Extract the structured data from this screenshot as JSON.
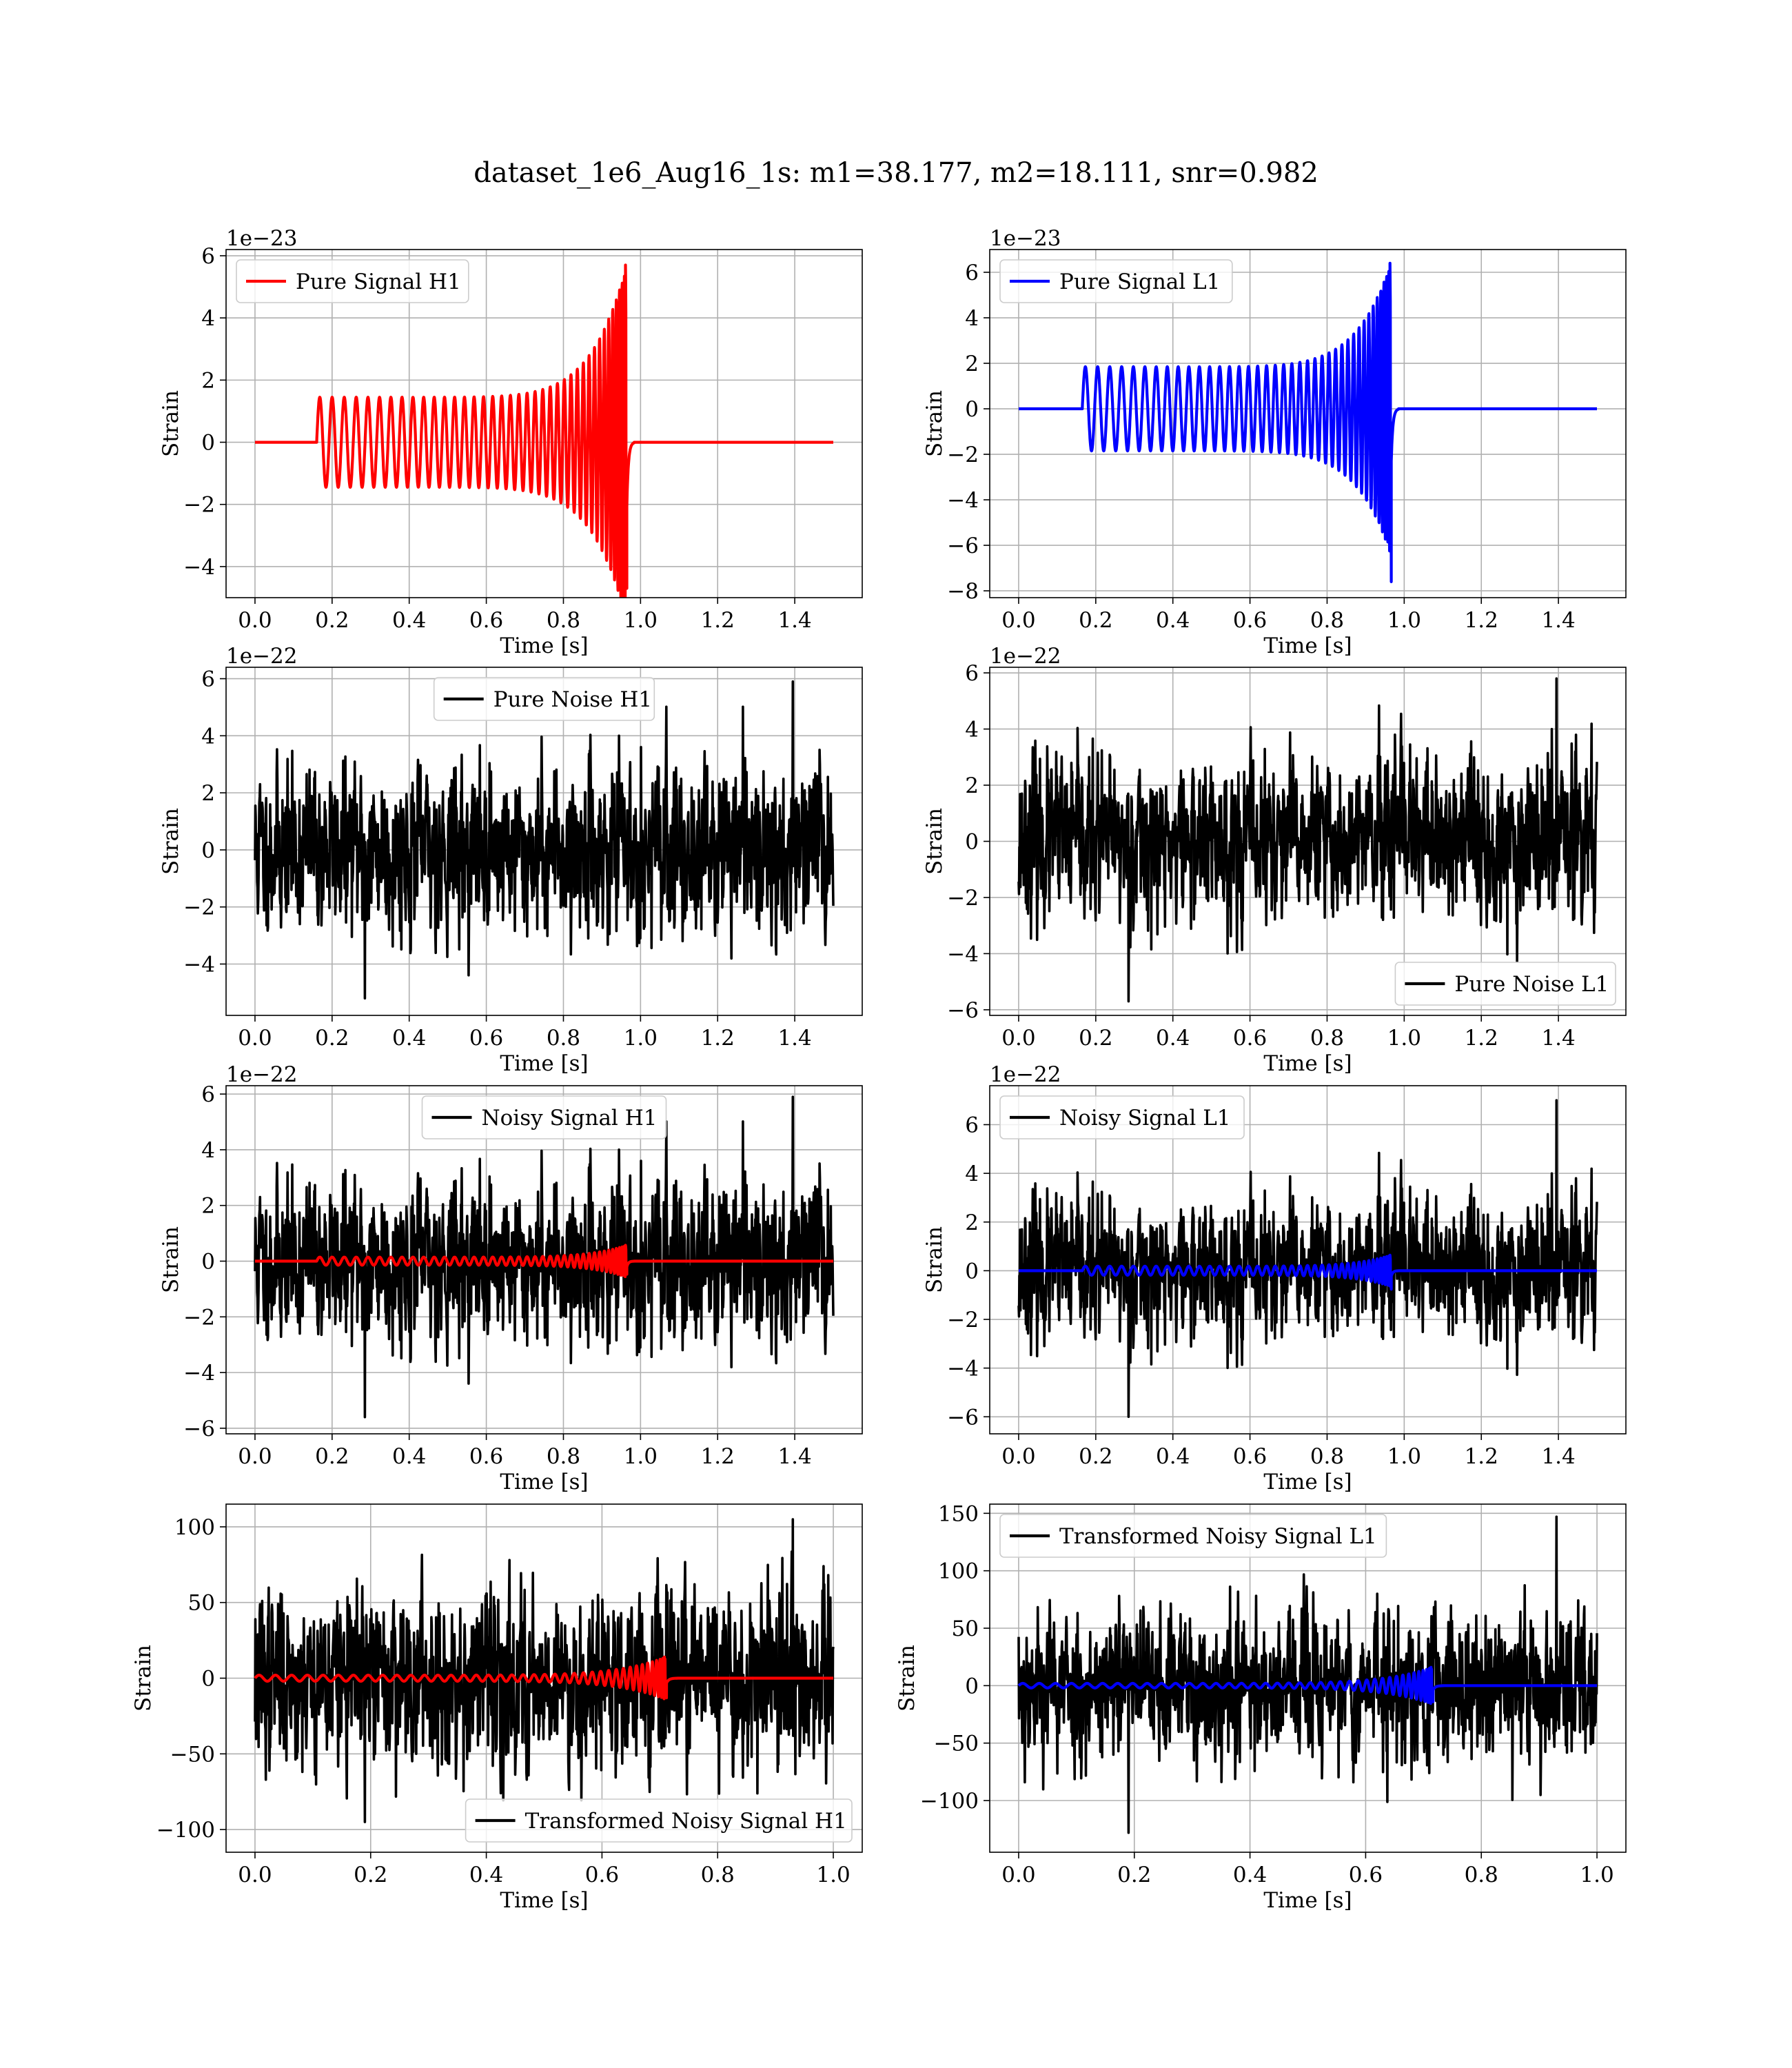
{
  "figure_title": "dataset_1e6_Aug16_1s: m1=38.177, m2=18.111, snr=0.982",
  "colors": {
    "h1_signal": "#ff0000",
    "l1_signal": "#0000ff",
    "noise": "#000000",
    "grid": "#b0b0b0"
  },
  "chart_data": [
    {
      "type": "line",
      "xlabel": "Time [s]",
      "ylabel": "Strain",
      "offset_text": "1e−23",
      "xlim": [
        -0.075,
        1.575
      ],
      "ylim": [
        -5.0,
        6.2
      ],
      "xticks": [
        0.0,
        0.2,
        0.4,
        0.6,
        0.8,
        1.0,
        1.2,
        1.4
      ],
      "xtick_labels": [
        "0.0",
        "0.2",
        "0.4",
        "0.6",
        "0.8",
        "1.0",
        "1.2",
        "1.4"
      ],
      "yticks": [
        -4,
        -2,
        0,
        2,
        4,
        6
      ],
      "ytick_labels": [
        "−4",
        "−2",
        "0",
        "2",
        "4",
        "6"
      ],
      "legend_position": "upper-left",
      "series": [
        {
          "name": "Pure Signal H1",
          "color": "#ff0000",
          "kind": "chirp",
          "t_start": 0.16,
          "t_merge": 0.963,
          "t_end": 1.5,
          "amp_start": 1.45,
          "amp_peak": 5.7,
          "amp_min_peak": -4.7,
          "cycles": 40
        }
      ]
    },
    {
      "type": "line",
      "xlabel": "Time [s]",
      "ylabel": "Strain",
      "offset_text": "1e−23",
      "xlim": [
        -0.075,
        1.575
      ],
      "ylim": [
        -8.3,
        7.0
      ],
      "xticks": [
        0.0,
        0.2,
        0.4,
        0.6,
        0.8,
        1.0,
        1.2,
        1.4
      ],
      "xtick_labels": [
        "0.0",
        "0.2",
        "0.4",
        "0.6",
        "0.8",
        "1.0",
        "1.2",
        "1.4"
      ],
      "yticks": [
        -8,
        -6,
        -4,
        -2,
        0,
        2,
        4,
        6
      ],
      "ytick_labels": [
        "−8",
        "−6",
        "−4",
        "−2",
        "0",
        "2",
        "4",
        "6"
      ],
      "legend_position": "upper-left",
      "series": [
        {
          "name": "Pure Signal L1",
          "color": "#0000ff",
          "kind": "chirp",
          "t_start": 0.165,
          "t_merge": 0.965,
          "t_end": 1.5,
          "amp_start": 1.85,
          "amp_peak": 6.4,
          "amp_min_peak": -7.6,
          "cycles": 40
        }
      ]
    },
    {
      "type": "line",
      "xlabel": "Time [s]",
      "ylabel": "Strain",
      "offset_text": "1e−22",
      "xlim": [
        -0.075,
        1.575
      ],
      "ylim": [
        -5.8,
        6.4
      ],
      "xticks": [
        0.0,
        0.2,
        0.4,
        0.6,
        0.8,
        1.0,
        1.2,
        1.4
      ],
      "xtick_labels": [
        "0.0",
        "0.2",
        "0.4",
        "0.6",
        "0.8",
        "1.0",
        "1.2",
        "1.4"
      ],
      "yticks": [
        -4,
        -2,
        0,
        2,
        4,
        6
      ],
      "ytick_labels": [
        "−4",
        "−2",
        "0",
        "2",
        "4",
        "6"
      ],
      "legend_position": "upper-center",
      "series": [
        {
          "name": "Pure Noise H1",
          "color": "#000000",
          "kind": "noise",
          "t_end": 1.5,
          "sigma": 1.3,
          "ymax": 5.9,
          "ymin": -5.2,
          "seed": 11
        }
      ]
    },
    {
      "type": "line",
      "xlabel": "Time [s]",
      "ylabel": "Strain",
      "offset_text": "1e−22",
      "xlim": [
        -0.075,
        1.575
      ],
      "ylim": [
        -6.2,
        6.2
      ],
      "xticks": [
        0.0,
        0.2,
        0.4,
        0.6,
        0.8,
        1.0,
        1.2,
        1.4
      ],
      "xtick_labels": [
        "0.0",
        "0.2",
        "0.4",
        "0.6",
        "0.8",
        "1.0",
        "1.2",
        "1.4"
      ],
      "yticks": [
        -6,
        -4,
        -2,
        0,
        2,
        4,
        6
      ],
      "ytick_labels": [
        "−6",
        "−4",
        "−2",
        "0",
        "2",
        "4",
        "6"
      ],
      "legend_position": "lower-right",
      "series": [
        {
          "name": "Pure Noise L1",
          "color": "#000000",
          "kind": "noise",
          "t_end": 1.5,
          "sigma": 1.3,
          "ymax": 5.8,
          "ymin": -5.7,
          "seed": 23
        }
      ]
    },
    {
      "type": "line",
      "xlabel": "Time [s]",
      "ylabel": "Strain",
      "offset_text": "1e−22",
      "xlim": [
        -0.075,
        1.575
      ],
      "ylim": [
        -6.2,
        6.3
      ],
      "xticks": [
        0.0,
        0.2,
        0.4,
        0.6,
        0.8,
        1.0,
        1.2,
        1.4
      ],
      "xtick_labels": [
        "0.0",
        "0.2",
        "0.4",
        "0.6",
        "0.8",
        "1.0",
        "1.2",
        "1.4"
      ],
      "yticks": [
        -6,
        -4,
        -2,
        0,
        2,
        4,
        6
      ],
      "ytick_labels": [
        "−6",
        "−4",
        "−2",
        "0",
        "2",
        "4",
        "6"
      ],
      "legend_position": "upper-center",
      "series": [
        {
          "name": "Noisy Signal H1",
          "color": "#000000",
          "kind": "noise",
          "t_end": 1.5,
          "sigma": 1.3,
          "ymax": 5.9,
          "ymin": -5.6,
          "seed": 11
        },
        {
          "name": "",
          "color": "#ff0000",
          "kind": "chirp",
          "t_start": 0.16,
          "t_merge": 0.963,
          "t_end": 1.5,
          "amp_start": 0.145,
          "amp_peak": 0.57,
          "amp_min_peak": -0.47,
          "cycles": 40
        }
      ]
    },
    {
      "type": "line",
      "xlabel": "Time [s]",
      "ylabel": "Strain",
      "offset_text": "1e−22",
      "xlim": [
        -0.075,
        1.575
      ],
      "ylim": [
        -6.7,
        7.6
      ],
      "xticks": [
        0.0,
        0.2,
        0.4,
        0.6,
        0.8,
        1.0,
        1.2,
        1.4
      ],
      "xtick_labels": [
        "0.0",
        "0.2",
        "0.4",
        "0.6",
        "0.8",
        "1.0",
        "1.2",
        "1.4"
      ],
      "yticks": [
        -6,
        -4,
        -2,
        0,
        2,
        4,
        6
      ],
      "ytick_labels": [
        "−6",
        "−4",
        "−2",
        "0",
        "2",
        "4",
        "6"
      ],
      "legend_position": "upper-left",
      "series": [
        {
          "name": "Noisy Signal L1",
          "color": "#000000",
          "kind": "noise",
          "t_end": 1.5,
          "sigma": 1.3,
          "ymax": 7.0,
          "ymin": -6.0,
          "seed": 23
        },
        {
          "name": "",
          "color": "#0000ff",
          "kind": "chirp",
          "t_start": 0.165,
          "t_merge": 0.965,
          "t_end": 1.5,
          "amp_start": 0.185,
          "amp_peak": 0.64,
          "amp_min_peak": -0.76,
          "cycles": 40
        }
      ]
    },
    {
      "type": "line",
      "xlabel": "Time [s]",
      "ylabel": "Strain",
      "offset_text": "",
      "xlim": [
        -0.05,
        1.05
      ],
      "ylim": [
        -115,
        115
      ],
      "xticks": [
        0.0,
        0.2,
        0.4,
        0.6,
        0.8,
        1.0
      ],
      "xtick_labels": [
        "0.0",
        "0.2",
        "0.4",
        "0.6",
        "0.8",
        "1.0"
      ],
      "yticks": [
        -100,
        -50,
        0,
        50,
        100
      ],
      "ytick_labels": [
        "−100",
        "−50",
        "0",
        "50",
        "100"
      ],
      "legend_position": "lower-right",
      "series": [
        {
          "name": "Transformed Noisy Signal H1",
          "color": "#000000",
          "kind": "noise",
          "t_end": 1.0,
          "sigma": 26,
          "ymax": 105,
          "ymin": -95,
          "seed": 37
        },
        {
          "name": "",
          "color": "#ff0000",
          "kind": "chirp",
          "t_start": 0.0,
          "t_merge": 0.71,
          "t_end": 1.0,
          "amp_start": 2,
          "amp_peak": 14,
          "amp_min_peak": -13,
          "cycles": 40
        }
      ]
    },
    {
      "type": "line",
      "xlabel": "Time [s]",
      "ylabel": "Strain",
      "offset_text": "",
      "xlim": [
        -0.05,
        1.05
      ],
      "ylim": [
        -145,
        158
      ],
      "xticks": [
        0.0,
        0.2,
        0.4,
        0.6,
        0.8,
        1.0
      ],
      "xtick_labels": [
        "0.0",
        "0.2",
        "0.4",
        "0.6",
        "0.8",
        "1.0"
      ],
      "yticks": [
        -100,
        -50,
        0,
        50,
        100,
        150
      ],
      "ytick_labels": [
        "−100",
        "−50",
        "0",
        "50",
        "100",
        "150"
      ],
      "legend_position": "upper-left",
      "series": [
        {
          "name": "Transformed Noisy Signal L1",
          "color": "#000000",
          "kind": "noise",
          "t_end": 1.0,
          "sigma": 30,
          "ymax": 147,
          "ymin": -128,
          "seed": 53
        },
        {
          "name": "",
          "color": "#0000ff",
          "kind": "chirp",
          "t_start": 0.0,
          "t_merge": 0.715,
          "t_end": 1.0,
          "amp_start": 2,
          "amp_peak": 16,
          "amp_min_peak": -14,
          "cycles": 40
        }
      ]
    }
  ]
}
